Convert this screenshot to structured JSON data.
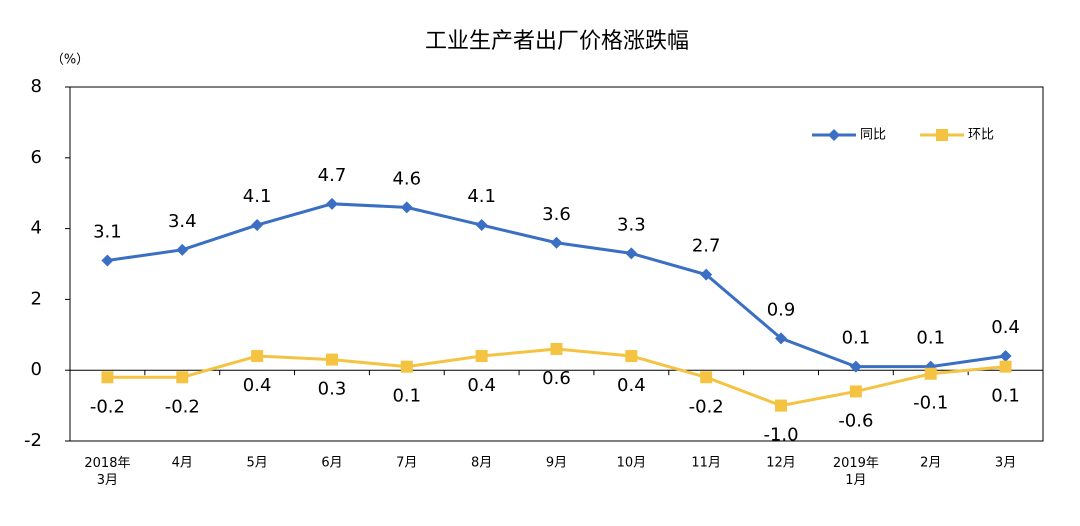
{
  "chart_data": {
    "type": "line",
    "title": "工业生产者出厂价格涨跌幅",
    "y_label": "（%）",
    "categories": [
      "2018年\n3月",
      "4月",
      "5月",
      "6月",
      "7月",
      "8月",
      "9月",
      "10月",
      "11月",
      "12月",
      "2019年\n1月",
      "2月",
      "3月"
    ],
    "series": [
      {
        "name": "同比",
        "color": "#3a6fc4",
        "marker": "diamond",
        "label_position": "above",
        "values": [
          3.1,
          3.4,
          4.1,
          4.7,
          4.6,
          4.1,
          3.6,
          3.3,
          2.7,
          0.9,
          0.1,
          0.1,
          0.4
        ]
      },
      {
        "name": "环比",
        "color": "#f5c342",
        "marker": "square",
        "label_position": "below",
        "values": [
          -0.2,
          -0.2,
          0.4,
          0.3,
          0.1,
          0.4,
          0.6,
          0.4,
          -0.2,
          -1.0,
          -0.6,
          -0.1,
          0.1
        ],
        "value_labels": [
          "-0.2",
          "-0.2",
          "0.4",
          "0.3",
          "0.1",
          "0.4",
          "0.6",
          "0.4",
          "-0.2",
          "-1.0",
          "-0.6",
          "-0.1",
          "0.1"
        ]
      }
    ],
    "ylim": [
      -2,
      8
    ],
    "yticks": [
      -2,
      0,
      2,
      4,
      6,
      8
    ],
    "legend": "top-right"
  }
}
